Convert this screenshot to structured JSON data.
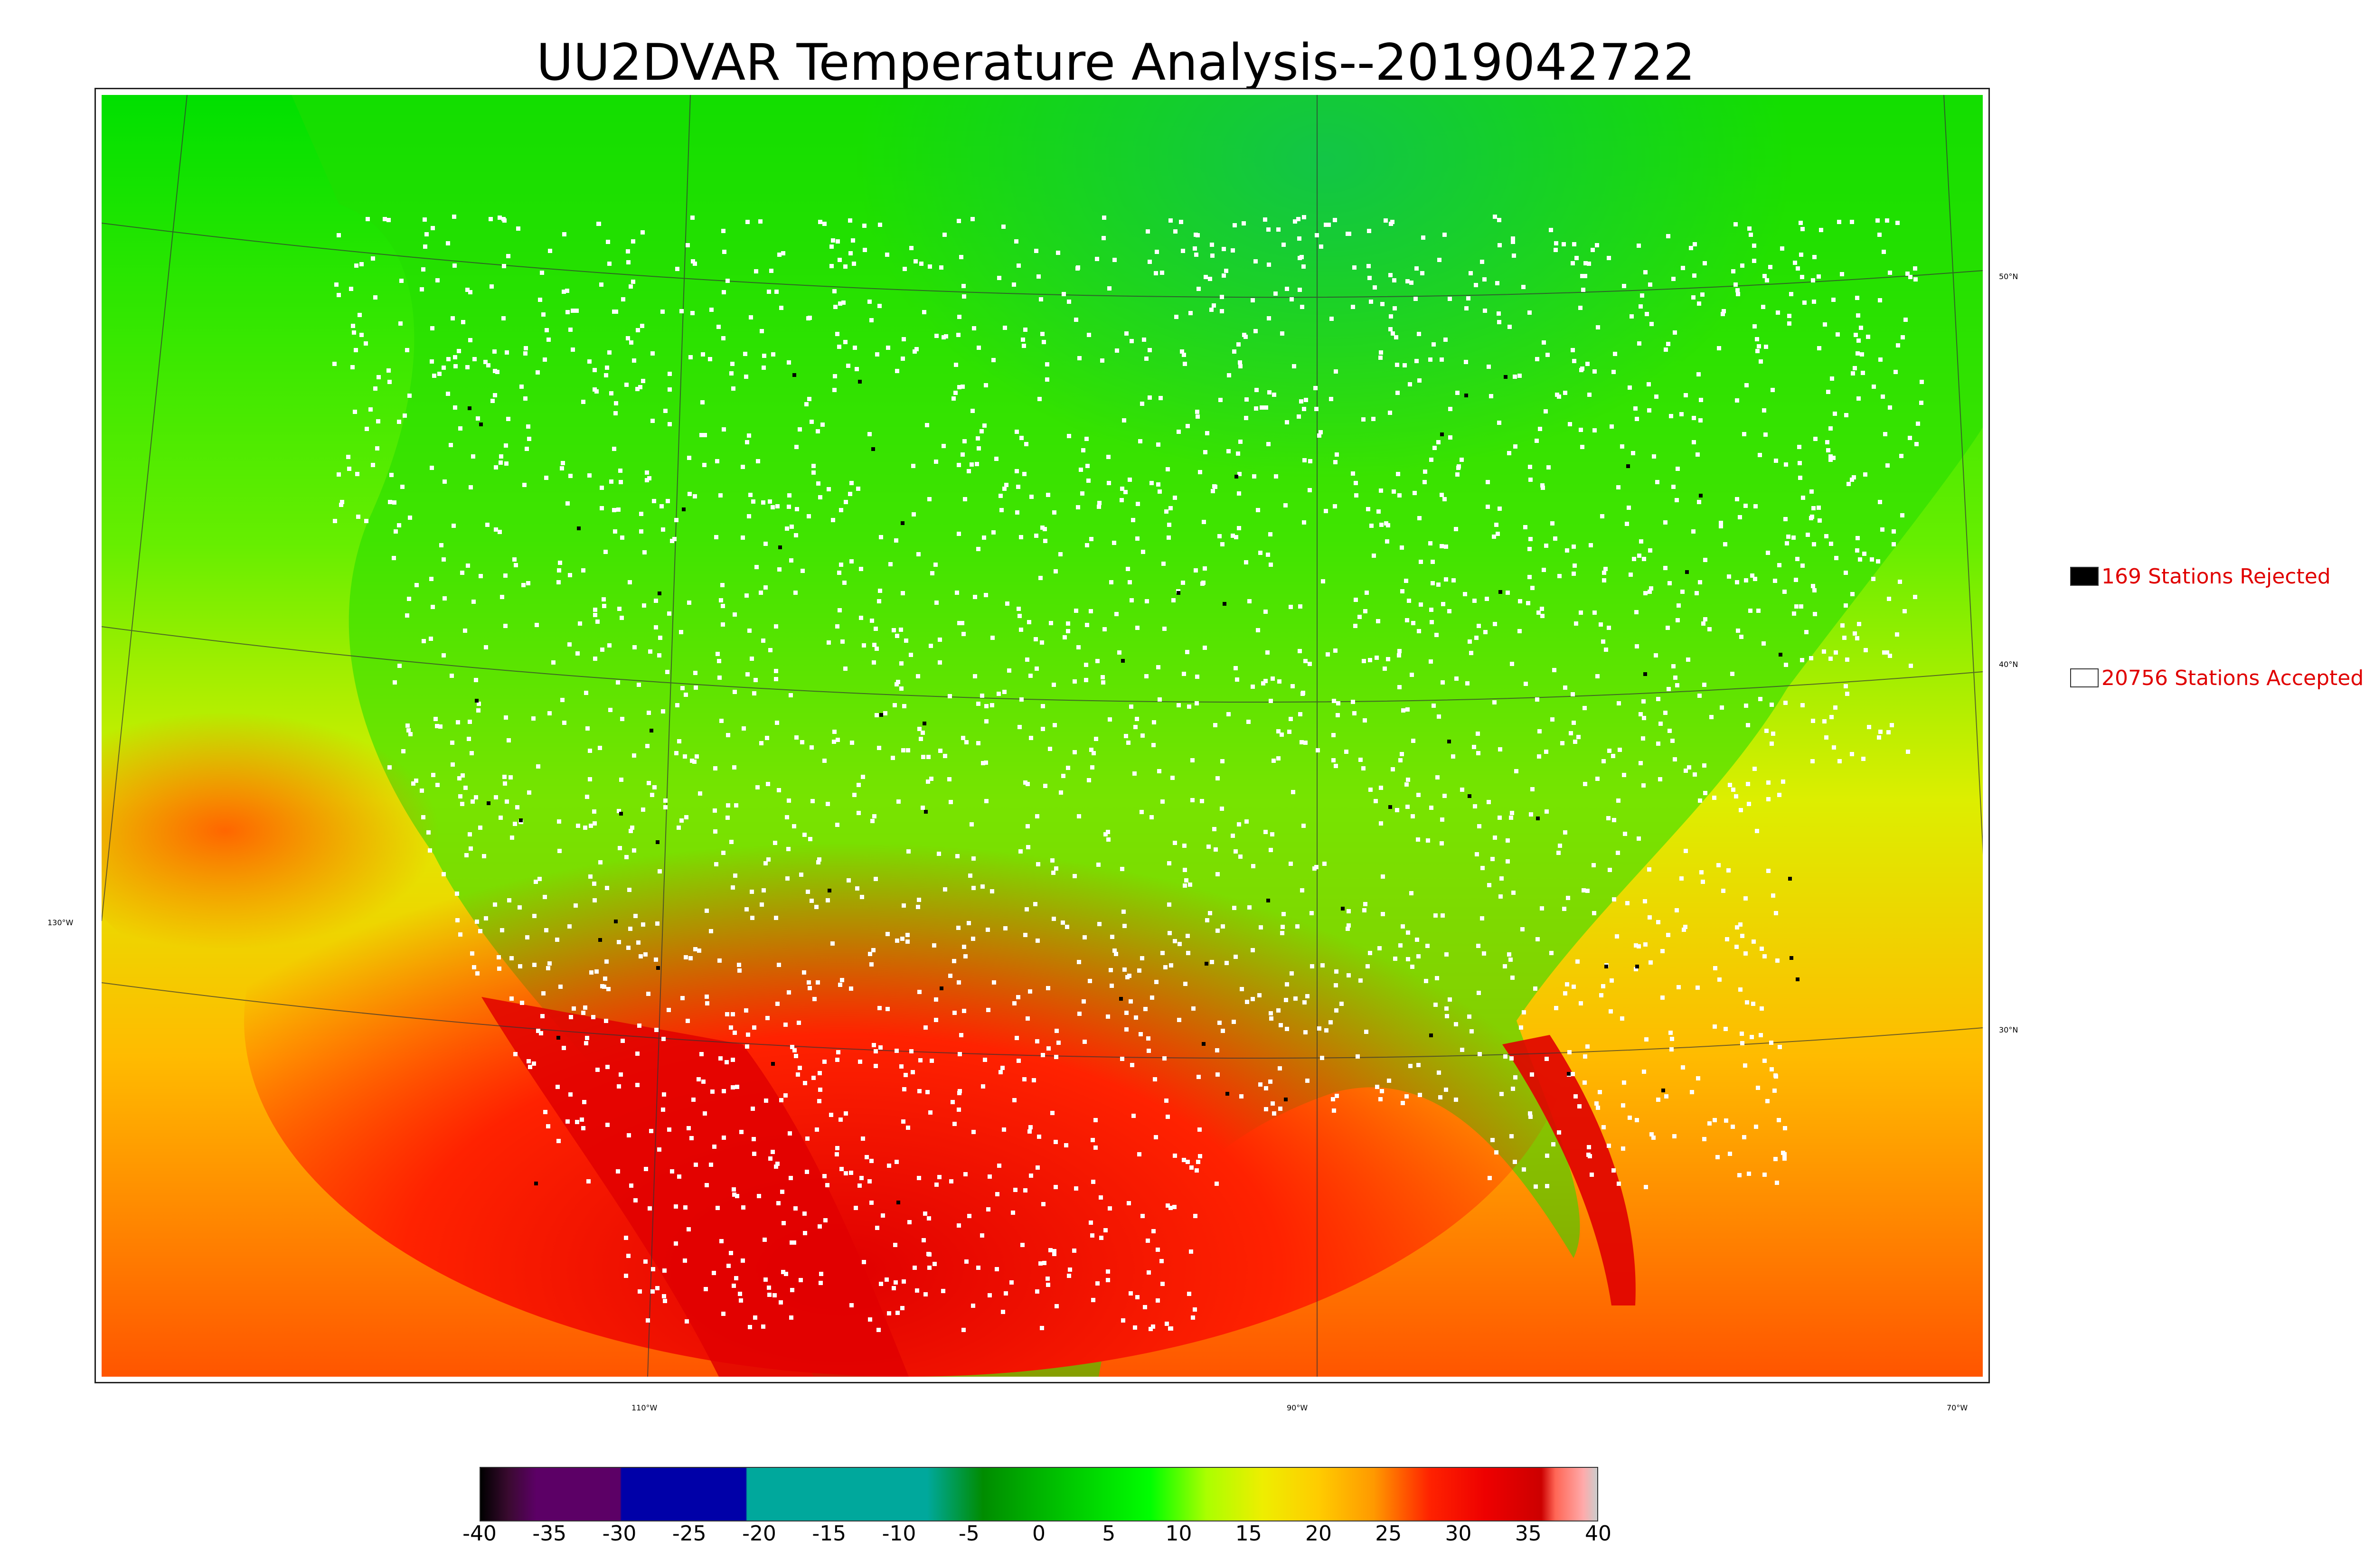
{
  "title": "UU2DVAR Temperature Analysis--2019042722",
  "legend": {
    "rejected": {
      "label": "169 Stations Rejected",
      "swatch_color": "#000000"
    },
    "accepted": {
      "label": "20756 Stations Accepted",
      "swatch_color": "#ffffff"
    }
  },
  "map": {
    "lon_labels": [
      "130°W",
      "110°W",
      "90°W",
      "70°W"
    ],
    "lat_labels": [
      "50°N",
      "40°N",
      "30°N"
    ]
  },
  "colorbar": {
    "ticks": [
      "-40",
      "-35",
      "-30",
      "-25",
      "-20",
      "-15",
      "-10",
      "-5",
      "0",
      "5",
      "10",
      "15",
      "20",
      "25",
      "30",
      "35",
      "40"
    ],
    "min": -40,
    "max": 40,
    "stops": [
      {
        "value": -40,
        "color": "#000000"
      },
      {
        "value": -38,
        "color": "#3a0a30"
      },
      {
        "value": -36,
        "color": "#5c0066"
      },
      {
        "value": -30,
        "color": "#5c0066"
      },
      {
        "value": -29.9,
        "color": "#0000a8"
      },
      {
        "value": -21,
        "color": "#0000a8"
      },
      {
        "value": -20.9,
        "color": "#00a89c"
      },
      {
        "value": -8,
        "color": "#00a89c"
      },
      {
        "value": -4,
        "color": "#008c00"
      },
      {
        "value": 0,
        "color": "#00b400"
      },
      {
        "value": 8,
        "color": "#00ff00"
      },
      {
        "value": 12,
        "color": "#aaff00"
      },
      {
        "value": 16,
        "color": "#eeee00"
      },
      {
        "value": 20,
        "color": "#ffcc00"
      },
      {
        "value": 24,
        "color": "#ff9900"
      },
      {
        "value": 28,
        "color": "#ff2200"
      },
      {
        "value": 32,
        "color": "#ee0000"
      },
      {
        "value": 36,
        "color": "#cc0000"
      },
      {
        "value": 37,
        "color": "#ff6655"
      },
      {
        "value": 39,
        "color": "#ffaaaa"
      },
      {
        "value": 40,
        "color": "#cccccc"
      }
    ]
  }
}
